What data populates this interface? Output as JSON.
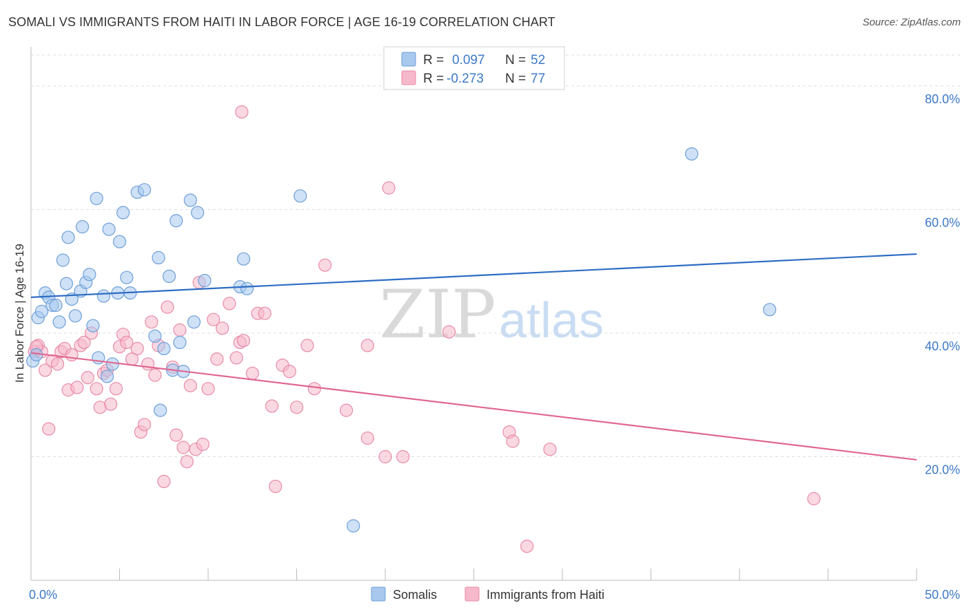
{
  "header": {
    "title": "SOMALI VS IMMIGRANTS FROM HAITI IN LABOR FORCE | AGE 16-19 CORRELATION CHART",
    "source": "Source: ZipAtlas.com"
  },
  "watermark": {
    "zip": "ZIP",
    "atlas": "atlas"
  },
  "colors": {
    "somali_fill": "#a8c8ee",
    "somali_stroke": "#6d9fd8",
    "somali_line": "#2d6cc4",
    "haiti_fill": "#f6b8cb",
    "haiti_stroke": "#e88aa7",
    "haiti_line": "#e06690",
    "axis_label": "#3b78c8",
    "grid": "#dcdcdc"
  },
  "legend": {
    "rows": [
      {
        "r_label": "R =",
        "r_value": "0.097",
        "n_label": "N =",
        "n_value": "52"
      },
      {
        "r_label": "R =",
        "r_value": "-0.273",
        "n_label": "N =",
        "n_value": "77"
      }
    ]
  },
  "chart_data": {
    "type": "scatter",
    "xlabel": "",
    "ylabel": "In Labor Force | Age 16-19",
    "xlim": [
      0,
      50
    ],
    "ylim": [
      0,
      85
    ],
    "x_tick_labels": [
      "0.0%",
      "50.0%"
    ],
    "y_ticks": [
      20,
      40,
      60,
      80
    ],
    "y_tick_labels": [
      "20.0%",
      "40.0%",
      "60.0%",
      "80.0%"
    ],
    "grid": true,
    "legend_position": "bottom-center",
    "series": [
      {
        "name": "Somalis",
        "trend": {
          "x": [
            0,
            50
          ],
          "y": [
            45.8,
            52.8
          ]
        },
        "points": [
          [
            0.1,
            35.5
          ],
          [
            0.4,
            42.5
          ],
          [
            0.6,
            43.5
          ],
          [
            0.8,
            46.5
          ],
          [
            1.0,
            45.8
          ],
          [
            1.2,
            44.5
          ],
          [
            1.4,
            44.5
          ],
          [
            1.6,
            41.8
          ],
          [
            1.8,
            51.8
          ],
          [
            2.0,
            48.0
          ],
          [
            2.1,
            55.5
          ],
          [
            2.3,
            45.5
          ],
          [
            2.5,
            42.8
          ],
          [
            2.8,
            46.8
          ],
          [
            2.9,
            57.2
          ],
          [
            3.1,
            48.2
          ],
          [
            3.3,
            49.5
          ],
          [
            3.5,
            41.2
          ],
          [
            3.7,
            61.8
          ],
          [
            3.8,
            36.0
          ],
          [
            4.1,
            46.0
          ],
          [
            4.3,
            33.0
          ],
          [
            4.4,
            56.8
          ],
          [
            4.6,
            35.0
          ],
          [
            4.9,
            46.5
          ],
          [
            5.0,
            54.8
          ],
          [
            5.2,
            59.5
          ],
          [
            5.4,
            49.0
          ],
          [
            5.6,
            46.5
          ],
          [
            6.0,
            62.8
          ],
          [
            6.4,
            63.2
          ],
          [
            7.0,
            39.5
          ],
          [
            7.2,
            52.2
          ],
          [
            7.3,
            27.5
          ],
          [
            7.5,
            37.5
          ],
          [
            7.8,
            49.2
          ],
          [
            8.0,
            34.0
          ],
          [
            8.2,
            58.2
          ],
          [
            8.4,
            38.5
          ],
          [
            8.6,
            33.8
          ],
          [
            9.0,
            61.5
          ],
          [
            9.2,
            41.8
          ],
          [
            9.4,
            59.5
          ],
          [
            9.8,
            48.5
          ],
          [
            11.8,
            47.5
          ],
          [
            12.0,
            52.0
          ],
          [
            12.2,
            47.2
          ],
          [
            15.2,
            62.2
          ],
          [
            18.2,
            8.8
          ],
          [
            37.3,
            69.0
          ],
          [
            41.7,
            43.8
          ],
          [
            0.3,
            36.5
          ]
        ]
      },
      {
        "name": "Immigrants from Haiti",
        "trend": {
          "x": [
            0,
            50
          ],
          "y": [
            36.8,
            19.5
          ]
        },
        "points": [
          [
            0.2,
            37.0
          ],
          [
            0.4,
            38.0
          ],
          [
            0.6,
            37.0
          ],
          [
            0.8,
            34.0
          ],
          [
            1.0,
            24.5
          ],
          [
            1.2,
            35.5
          ],
          [
            1.5,
            35.0
          ],
          [
            1.7,
            37.0
          ],
          [
            1.9,
            37.5
          ],
          [
            2.1,
            30.8
          ],
          [
            2.3,
            36.5
          ],
          [
            2.6,
            31.2
          ],
          [
            2.8,
            38.0
          ],
          [
            3.0,
            38.5
          ],
          [
            3.2,
            32.8
          ],
          [
            3.4,
            40.0
          ],
          [
            3.7,
            31.0
          ],
          [
            3.9,
            28.0
          ],
          [
            4.1,
            33.5
          ],
          [
            4.3,
            34.0
          ],
          [
            4.5,
            28.5
          ],
          [
            4.8,
            31.0
          ],
          [
            5.0,
            37.8
          ],
          [
            5.2,
            39.8
          ],
          [
            5.4,
            38.5
          ],
          [
            5.7,
            35.8
          ],
          [
            6.0,
            37.5
          ],
          [
            6.2,
            24.0
          ],
          [
            6.4,
            25.2
          ],
          [
            6.6,
            35.0
          ],
          [
            6.8,
            41.8
          ],
          [
            7.0,
            33.2
          ],
          [
            7.2,
            38.0
          ],
          [
            7.5,
            16.0
          ],
          [
            7.7,
            44.2
          ],
          [
            8.0,
            34.5
          ],
          [
            8.2,
            23.5
          ],
          [
            8.4,
            40.5
          ],
          [
            8.6,
            21.5
          ],
          [
            8.8,
            19.2
          ],
          [
            9.0,
            31.5
          ],
          [
            9.3,
            21.2
          ],
          [
            9.5,
            48.2
          ],
          [
            9.7,
            22.0
          ],
          [
            10.0,
            31.0
          ],
          [
            10.3,
            42.2
          ],
          [
            10.5,
            35.8
          ],
          [
            10.8,
            40.8
          ],
          [
            11.2,
            44.8
          ],
          [
            11.6,
            36.0
          ],
          [
            11.8,
            38.5
          ],
          [
            12.0,
            38.8
          ],
          [
            12.5,
            33.5
          ],
          [
            12.8,
            43.2
          ],
          [
            13.2,
            43.2
          ],
          [
            13.6,
            28.2
          ],
          [
            13.8,
            15.2
          ],
          [
            14.2,
            34.8
          ],
          [
            14.6,
            33.8
          ],
          [
            15.0,
            28.0
          ],
          [
            15.6,
            38.0
          ],
          [
            16.0,
            31.0
          ],
          [
            16.6,
            51.0
          ],
          [
            17.8,
            27.5
          ],
          [
            19.0,
            38.0
          ],
          [
            19.0,
            23.0
          ],
          [
            20.0,
            20.0
          ],
          [
            20.2,
            63.5
          ],
          [
            21.0,
            20.0
          ],
          [
            23.6,
            40.2
          ],
          [
            27.0,
            24.0
          ],
          [
            27.2,
            22.5
          ],
          [
            28.0,
            5.5
          ],
          [
            29.3,
            21.2
          ],
          [
            44.2,
            13.2
          ],
          [
            11.9,
            75.8
          ],
          [
            0.3,
            37.8
          ]
        ]
      }
    ]
  }
}
